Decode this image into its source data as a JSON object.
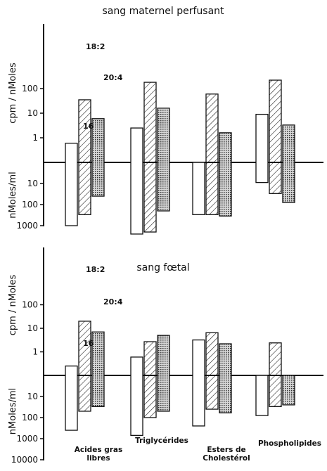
{
  "chart_data": [
    {
      "type": "bar",
      "title": "sang maternel perfusant",
      "ylabel_top": "cpm / nMoles",
      "ylabel_bottom": "nMoles/ml",
      "yticks_top": [
        "100",
        "10",
        "1"
      ],
      "yticks_bottom": [
        "10",
        "100",
        "1000"
      ],
      "scale": "log",
      "ylim_top": [
        0.1,
        200
      ],
      "ylim_bottom": [
        1,
        1000
      ],
      "bar_labels": [
        "16",
        "18:2",
        "20:4"
      ],
      "categories": [
        "Acides gras libres",
        "Triglycérides",
        "Esters de Cholestérol",
        "Phospholipides"
      ],
      "series": [
        {
          "name": "16",
          "pattern": "open",
          "cpm_per_nmole": [
            0.6,
            2.5,
            0.1,
            9
          ],
          "nmoles_per_ml": [
            1000,
            2500,
            300,
            9
          ]
        },
        {
          "name": "18:2",
          "pattern": "hatched",
          "cpm_per_nmole": [
            35,
            180,
            60,
            220
          ],
          "nmoles_per_ml": [
            300,
            2000,
            300,
            30
          ]
        },
        {
          "name": "20:4",
          "pattern": "dotted",
          "cpm_per_nmole": [
            6,
            16,
            1.6,
            3.3
          ],
          "nmoles_per_ml": [
            40,
            200,
            350,
            80
          ]
        }
      ]
    },
    {
      "type": "bar",
      "title": "sang fœtal",
      "ylabel_top": "cpm / nMoles",
      "ylabel_bottom": "nMoles/ml",
      "yticks_top": [
        "100",
        "10",
        "1"
      ],
      "yticks_bottom": [
        "10",
        "100",
        "1000",
        "10000"
      ],
      "scale": "log",
      "ylim_top": [
        0.1,
        100
      ],
      "ylim_bottom": [
        1,
        10000
      ],
      "bar_labels": [
        "16",
        "18:2",
        "20:4"
      ],
      "categories": [
        "Acides gras libres",
        "Triglycérides",
        "Esters de Cholestérol",
        "Phospholipides"
      ],
      "series": [
        {
          "name": "16",
          "pattern": "open",
          "cpm_per_nmole": [
            0.25,
            0.6,
            3.2,
            0.1
          ],
          "nmoles_per_ml": [
            400,
            700,
            250,
            80
          ]
        },
        {
          "name": "18:2",
          "pattern": "hatched",
          "cpm_per_nmole": [
            20,
            2.7,
            6.5,
            2.4
          ],
          "nmoles_per_ml": [
            50,
            100,
            40,
            30
          ]
        },
        {
          "name": "20:4",
          "pattern": "dotted",
          "cpm_per_nmole": [
            7,
            5,
            2.2,
            0.1
          ],
          "nmoles_per_ml": [
            30,
            50,
            60,
            25
          ]
        }
      ]
    }
  ]
}
